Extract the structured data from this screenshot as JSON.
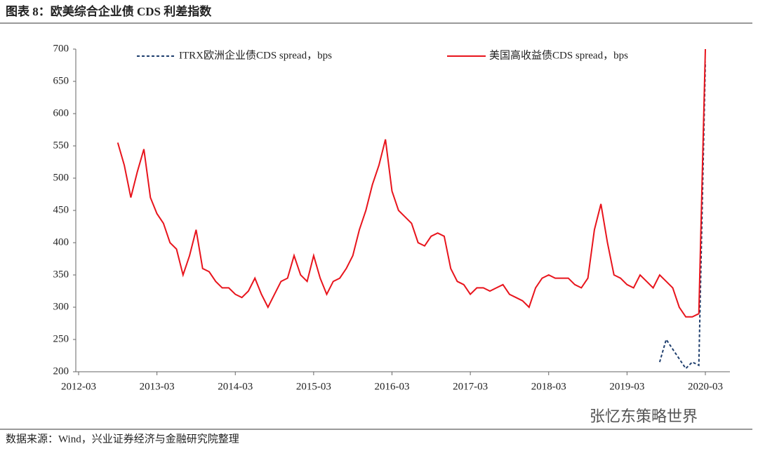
{
  "chart_data": {
    "type": "line",
    "title": "图表 8：欧美综合企业债 CDS 利差指数",
    "source": "数据来源：Wind，兴业证券经济与金融研究院整理",
    "watermark": "张忆东策略世界",
    "x": [
      "2012-09",
      "2012-10",
      "2012-11",
      "2012-12",
      "2013-01",
      "2013-02",
      "2013-03",
      "2013-04",
      "2013-05",
      "2013-06",
      "2013-07",
      "2013-08",
      "2013-09",
      "2013-10",
      "2013-11",
      "2013-12",
      "2014-01",
      "2014-02",
      "2014-03",
      "2014-04",
      "2014-05",
      "2014-06",
      "2014-07",
      "2014-08",
      "2014-09",
      "2014-10",
      "2014-11",
      "2014-12",
      "2015-01",
      "2015-02",
      "2015-03",
      "2015-04",
      "2015-05",
      "2015-06",
      "2015-07",
      "2015-08",
      "2015-09",
      "2015-10",
      "2015-11",
      "2015-12",
      "2016-01",
      "2016-02",
      "2016-03",
      "2016-04",
      "2016-05",
      "2016-06",
      "2016-07",
      "2016-08",
      "2016-09",
      "2016-10",
      "2016-11",
      "2016-12",
      "2017-01",
      "2017-02",
      "2017-03",
      "2017-04",
      "2017-05",
      "2017-06",
      "2017-07",
      "2017-08",
      "2017-09",
      "2017-10",
      "2017-11",
      "2017-12",
      "2018-01",
      "2018-02",
      "2018-03",
      "2018-04",
      "2018-05",
      "2018-06",
      "2018-07",
      "2018-08",
      "2018-09",
      "2018-10",
      "2018-11",
      "2018-12",
      "2019-01",
      "2019-02",
      "2019-03",
      "2019-04",
      "2019-05",
      "2019-06",
      "2019-07",
      "2019-08",
      "2019-09",
      "2019-10",
      "2019-11",
      "2019-12",
      "2020-01",
      "2020-02",
      "2020-03"
    ],
    "series": [
      {
        "name": "ITRX欧洲企业债CDS spread，bps",
        "color": "#1f3f6e",
        "dash": true,
        "values": [
          null,
          null,
          null,
          null,
          null,
          null,
          null,
          null,
          null,
          null,
          null,
          null,
          null,
          null,
          null,
          null,
          null,
          null,
          null,
          null,
          null,
          null,
          null,
          null,
          null,
          null,
          null,
          null,
          null,
          null,
          null,
          null,
          null,
          null,
          null,
          null,
          null,
          null,
          null,
          null,
          null,
          null,
          null,
          null,
          null,
          null,
          null,
          null,
          null,
          null,
          null,
          null,
          null,
          null,
          null,
          null,
          null,
          null,
          null,
          null,
          null,
          null,
          null,
          null,
          null,
          null,
          null,
          null,
          null,
          null,
          null,
          null,
          null,
          null,
          null,
          null,
          null,
          null,
          null,
          null,
          null,
          null,
          null,
          215,
          250,
          235,
          220,
          205,
          215,
          210,
          680
        ]
      },
      {
        "name": "美国高收益债CDS spread，bps",
        "color": "#e8141c",
        "dash": false,
        "values": [
          555,
          520,
          470,
          510,
          545,
          470,
          445,
          430,
          400,
          390,
          350,
          380,
          420,
          360,
          355,
          340,
          330,
          330,
          320,
          315,
          325,
          345,
          320,
          300,
          320,
          340,
          345,
          380,
          350,
          340,
          380,
          345,
          320,
          340,
          345,
          360,
          380,
          420,
          450,
          490,
          520,
          560,
          480,
          450,
          440,
          430,
          400,
          395,
          410,
          415,
          410,
          360,
          340,
          335,
          320,
          330,
          330,
          325,
          330,
          335,
          320,
          315,
          310,
          300,
          330,
          345,
          350,
          345,
          345,
          345,
          335,
          330,
          345,
          420,
          460,
          400,
          350,
          345,
          335,
          330,
          350,
          340,
          330,
          350,
          340,
          330,
          300,
          285,
          285,
          290,
          700
        ]
      }
    ],
    "xlim": [
      "2012-03",
      "2020-03"
    ],
    "xticks": [
      "2012-03",
      "2013-03",
      "2014-03",
      "2015-03",
      "2016-03",
      "2017-03",
      "2018-03",
      "2019-03",
      "2020-03"
    ],
    "ylim": [
      200,
      700
    ],
    "yticks": [
      200,
      250,
      300,
      350,
      400,
      450,
      500,
      550,
      600,
      650,
      700
    ]
  }
}
